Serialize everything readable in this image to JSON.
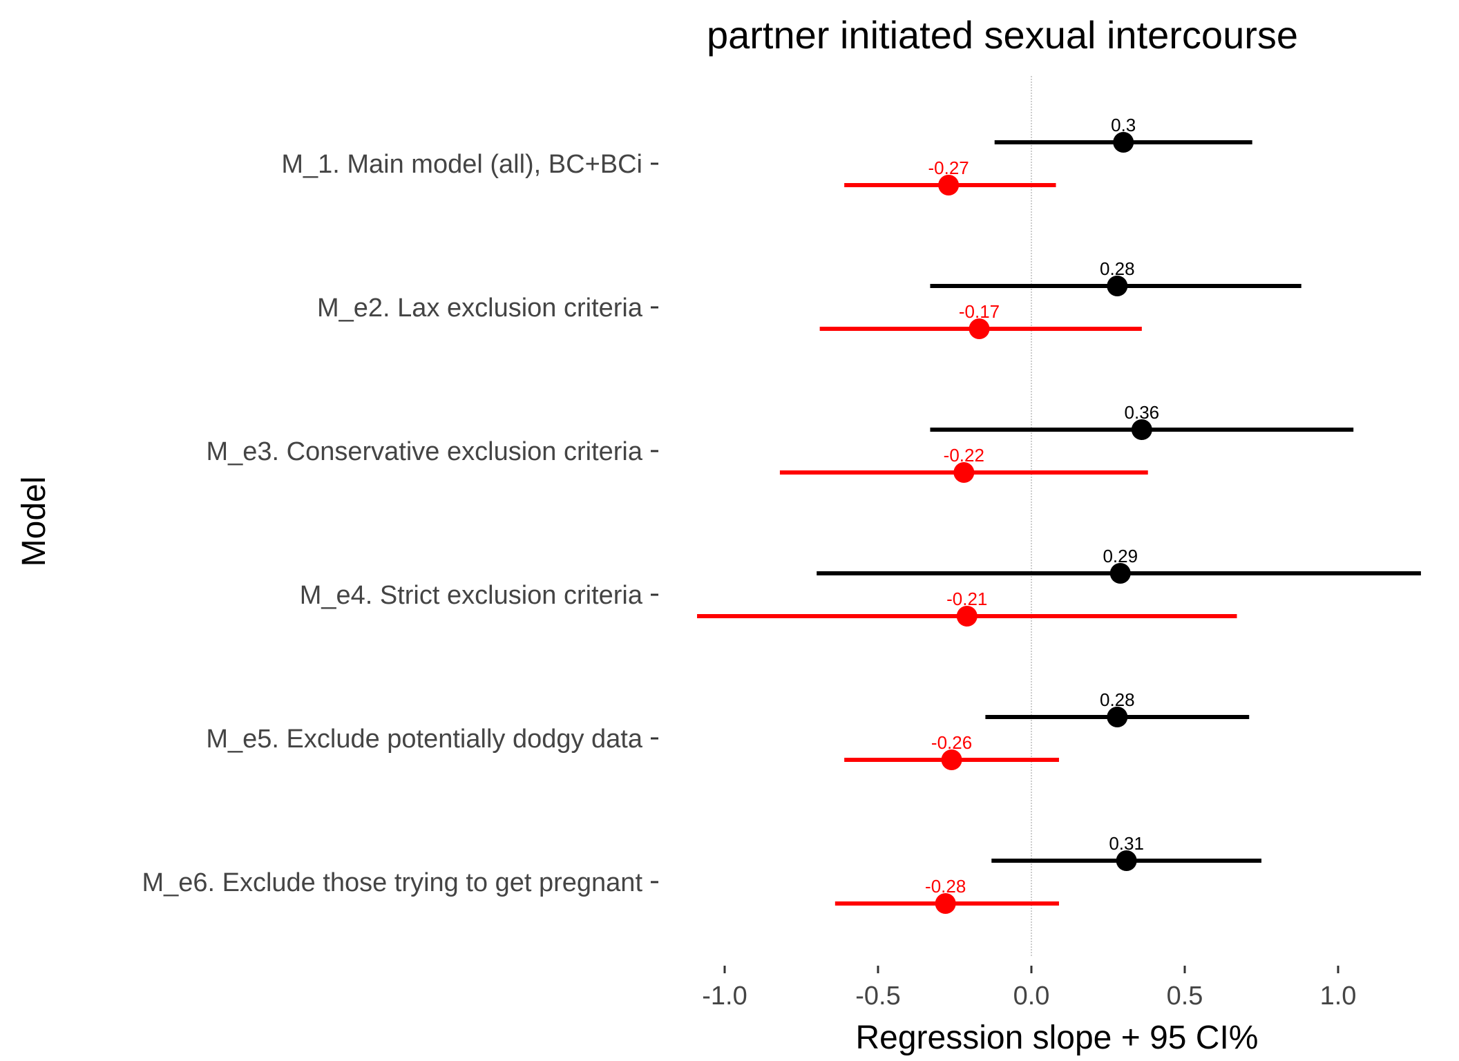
{
  "chart_data": {
    "type": "forest",
    "title": "partner initiated sexual intercourse",
    "xlabel": "Regression slope + 95 CI%",
    "ylabel": "Model",
    "xlim": [
      -1.1,
      1.3
    ],
    "xticks": [
      -1.0,
      -0.5,
      0.0,
      0.5,
      1.0
    ],
    "xtick_labels": [
      "-1.0",
      "-0.5",
      "0.0",
      "0.5",
      "1.0"
    ],
    "reference_line": 0.0,
    "grid": false,
    "legend": "none",
    "categories": [
      "M_1. Main model (all), BC+BCi",
      "M_e2. Lax exclusion criteria",
      "M_e3. Conservative exclusion criteria",
      "M_e4. Strict exclusion criteria",
      "M_e5. Exclude potentially dodgy data",
      "M_e6. Exclude those trying to get pregnant"
    ],
    "series": [
      {
        "color": "#000000",
        "estimates": [
          0.3,
          0.28,
          0.36,
          0.29,
          0.28,
          0.31
        ],
        "lower": [
          -0.12,
          -0.33,
          -0.33,
          -0.7,
          -0.15,
          -0.13
        ],
        "upper": [
          0.72,
          0.88,
          1.05,
          1.27,
          0.71,
          0.75
        ],
        "labels": [
          "0.3",
          "0.28",
          "0.36",
          "0.29",
          "0.28",
          "0.31"
        ]
      },
      {
        "color": "#ff0000",
        "estimates": [
          -0.27,
          -0.17,
          -0.22,
          -0.21,
          -0.26,
          -0.28
        ],
        "lower": [
          -0.61,
          -0.69,
          -0.82,
          -1.09,
          -0.61,
          -0.64
        ],
        "upper": [
          0.08,
          0.36,
          0.38,
          0.67,
          0.09,
          0.09
        ],
        "labels": [
          "-0.27",
          "-0.17",
          "-0.22",
          "-0.21",
          "-0.26",
          "-0.28"
        ]
      }
    ]
  }
}
